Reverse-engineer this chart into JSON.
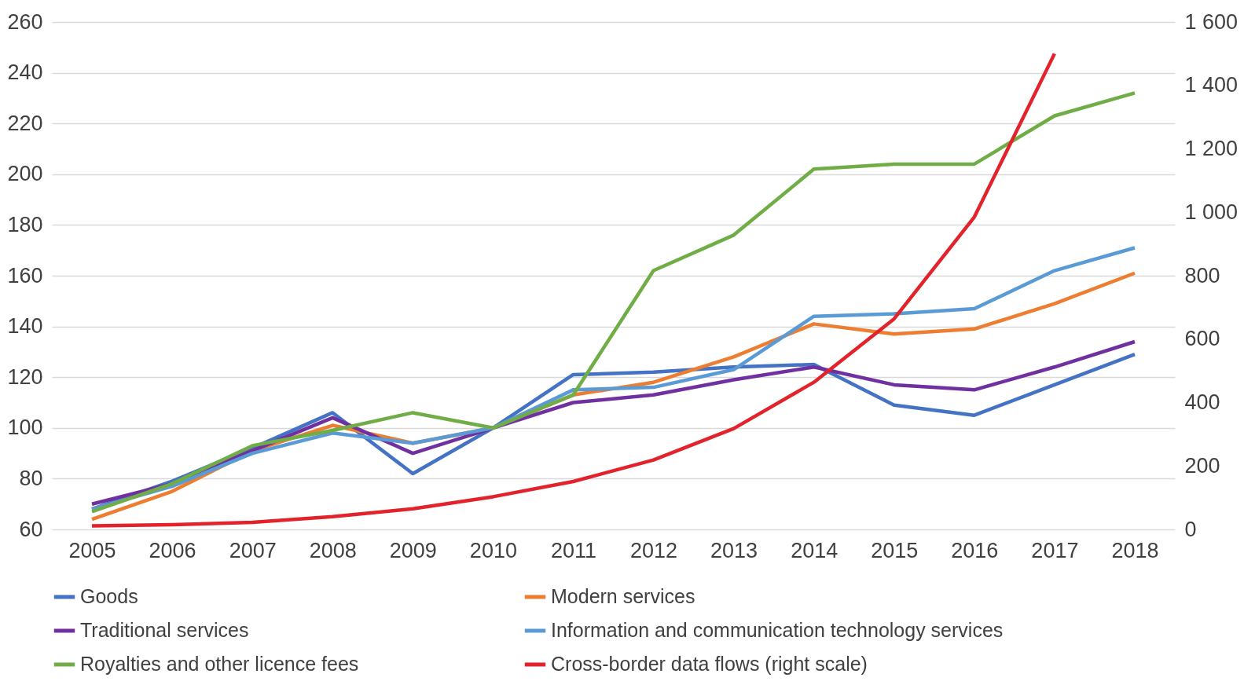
{
  "chart_data": {
    "type": "line",
    "categories": [
      "2005",
      "2006",
      "2007",
      "2008",
      "2009",
      "2010",
      "2011",
      "2012",
      "2013",
      "2014",
      "2015",
      "2016",
      "2017",
      "2018"
    ],
    "series": [
      {
        "name": "Goods",
        "color": "#4472c4",
        "values": [
          68,
          79,
          92,
          106,
          82,
          100,
          121,
          122,
          124,
          125,
          109,
          105,
          117,
          129
        ]
      },
      {
        "name": "Modern services",
        "color": "#ed7d31",
        "values": [
          64,
          75,
          91,
          101,
          94,
          100,
          113,
          118,
          128,
          141,
          137,
          139,
          149,
          161
        ]
      },
      {
        "name": "Traditional services",
        "color": "#7030a0",
        "values": [
          70,
          78,
          91,
          104,
          90,
          100,
          110,
          113,
          119,
          124,
          117,
          115,
          124,
          134
        ]
      },
      {
        "name": "Information and communication technology services",
        "color": "#5b9bd5",
        "values": [
          68,
          77,
          90,
          98,
          94,
          100,
          115,
          116,
          123,
          144,
          145,
          147,
          162,
          171
        ]
      },
      {
        "name": "Royalties and other licence fees",
        "color": "#70ad47",
        "values": [
          67,
          78,
          93,
          99,
          106,
          100,
          113,
          162,
          176,
          202,
          204,
          204,
          223,
          232
        ]
      },
      {
        "name": "Cross-border data flows (right scale)",
        "color": "#e3232b",
        "axis": "y2",
        "values": [
          11,
          15,
          22,
          40,
          65,
          103,
          151,
          219,
          318,
          464,
          664,
          985,
          1500,
          null
        ]
      }
    ],
    "ylim": [
      60,
      260
    ],
    "yticks": [
      60,
      80,
      100,
      120,
      140,
      160,
      180,
      200,
      220,
      240,
      260
    ],
    "y2lim": [
      0,
      1600
    ],
    "y2ticks": [
      0,
      200,
      400,
      600,
      800,
      {
        "value": 1000,
        "label": "1 000"
      },
      {
        "value": 1200,
        "label": "1 200"
      },
      {
        "value": 1400,
        "label": "1 400"
      },
      {
        "value": 1600,
        "label": "1 600"
      }
    ],
    "grid": "y",
    "legend": "bottom",
    "line_style": "solid"
  }
}
